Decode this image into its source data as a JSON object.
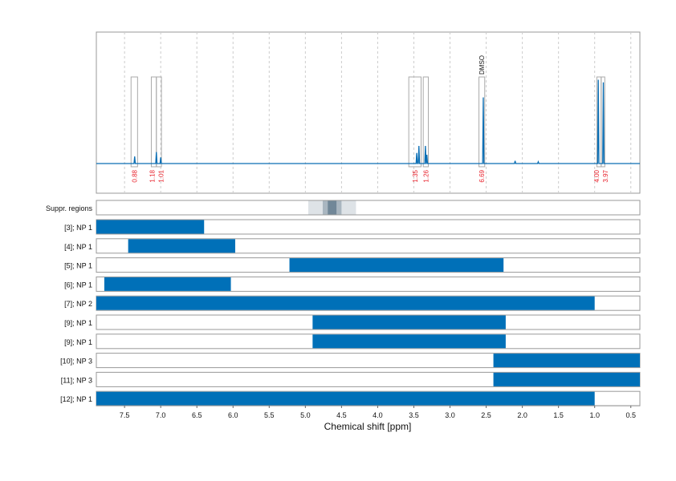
{
  "chart_data": {
    "type": "nmr-spectrum-with-region-bars",
    "xlabel": "Chemical shift [ppm]",
    "xlim": [
      7.89,
      0.375
    ],
    "x_reversed": true,
    "xticks": [
      "7.5",
      "7.0",
      "6.5",
      "6.0",
      "5.5",
      "5.0",
      "4.5",
      "4.0",
      "3.5",
      "3.0",
      "2.5",
      "2.0",
      "1.5",
      "1.0",
      "0.5"
    ],
    "grid": "vertical dashed every 0.5 ppm",
    "colors": {
      "spectrum": "#0a6eb4",
      "bar": "#0070b8",
      "integral_label": "#e8202a",
      "box": "#aaaaaa"
    },
    "peaks": [
      {
        "ppm": 7.36,
        "height": 0.08
      },
      {
        "ppm": 7.06,
        "height": 0.13
      },
      {
        "ppm": 7.0,
        "height": 0.07
      },
      {
        "ppm": 3.46,
        "height": 0.12
      },
      {
        "ppm": 3.43,
        "height": 0.2
      },
      {
        "ppm": 3.34,
        "height": 0.2
      },
      {
        "ppm": 3.32,
        "height": 0.1
      },
      {
        "ppm": 2.54,
        "height": 0.75
      },
      {
        "ppm": 2.1,
        "height": 0.03
      },
      {
        "ppm": 1.78,
        "height": 0.02
      },
      {
        "ppm": 0.95,
        "height": 0.95
      },
      {
        "ppm": 0.88,
        "height": 0.92
      }
    ],
    "integration_regions": [
      {
        "from": 7.41,
        "to": 7.32,
        "label": "0.88"
      },
      {
        "from": 7.13,
        "to": 7.06,
        "label": "1.18"
      },
      {
        "from": 7.06,
        "to": 6.99,
        "label": "1.01"
      },
      {
        "from": 3.57,
        "to": 3.4,
        "label": "1.35"
      },
      {
        "from": 3.37,
        "to": 3.3,
        "label": "1.26"
      },
      {
        "from": 2.6,
        "to": 2.52,
        "label": "6.69",
        "annotation": "DMSO"
      },
      {
        "from": 0.97,
        "to": 0.91,
        "label": "4.00"
      },
      {
        "from": 0.91,
        "to": 0.86,
        "label": "3.97"
      }
    ],
    "suppressed_regions": {
      "label": "Suppr. regions",
      "bands": [
        {
          "from": 4.96,
          "to": 4.3,
          "intensity": 0.2
        },
        {
          "from": 4.76,
          "to": 4.5,
          "intensity": 0.4
        },
        {
          "from": 4.69,
          "to": 4.57,
          "intensity": 0.7
        }
      ]
    },
    "rows": [
      {
        "label": "[3]; NP 1",
        "from": 7.89,
        "to": 6.4
      },
      {
        "label": "[4]; NP 1",
        "from": 7.45,
        "to": 5.97
      },
      {
        "label": "[5]; NP 1",
        "from": 5.22,
        "to": 2.26
      },
      {
        "label": "[6]; NP 1",
        "from": 7.78,
        "to": 6.03
      },
      {
        "label": "[7]; NP 2",
        "from": 7.89,
        "to": 1.0
      },
      {
        "label": "[9]; NP 1",
        "from": 4.9,
        "to": 2.23
      },
      {
        "label": "[9]; NP 1",
        "from": 4.9,
        "to": 2.23
      },
      {
        "label": "[10]; NP 3",
        "from": 2.4,
        "to": 0.375
      },
      {
        "label": "[11]; NP 3",
        "from": 2.4,
        "to": 0.375
      },
      {
        "label": "[12]; NP 1",
        "from": 7.89,
        "to": 1.0
      }
    ]
  }
}
